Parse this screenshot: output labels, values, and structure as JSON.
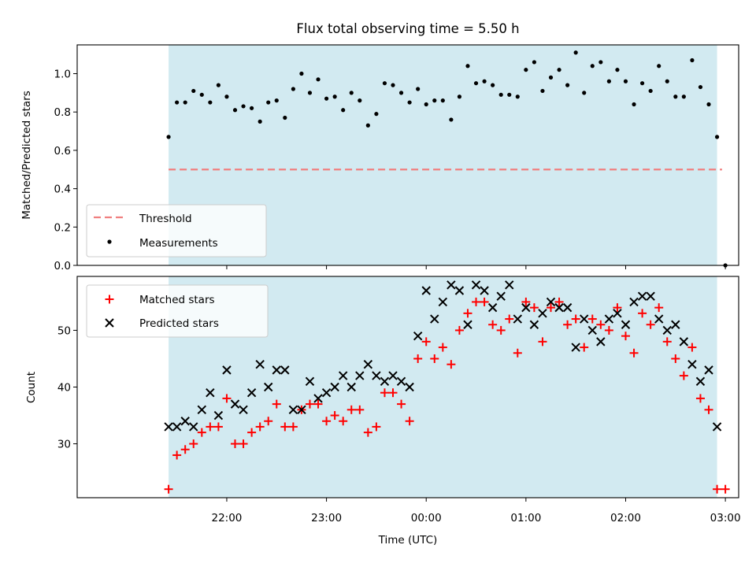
{
  "chart_data": [
    {
      "type": "scatter",
      "title": "Flux total observing time = 5.50 h",
      "xlabel": "",
      "ylabel": "Matched/Predicted stars",
      "ylim": [
        0,
        1.15
      ],
      "yticks": [
        0.0,
        0.2,
        0.4,
        0.6,
        0.8,
        1.0
      ],
      "ytick_labels": [
        "0.0",
        "0.2",
        "0.4",
        "0.6",
        "0.8",
        "1.0"
      ],
      "x_unit": "minutes after 21:00 UTC",
      "xlim": [
        -30,
        368
      ],
      "shaded_span": [
        25,
        355
      ],
      "shade_color": "#add8e6",
      "threshold": {
        "label": "Threshold",
        "value": 0.5,
        "x_range": [
          25,
          358
        ],
        "color": "#f08080"
      },
      "measurements": {
        "label": "Measurements",
        "color": "#000000",
        "x": [
          25,
          30,
          35,
          40,
          45,
          50,
          55,
          60,
          65,
          70,
          75,
          80,
          85,
          90,
          95,
          100,
          105,
          110,
          115,
          120,
          125,
          130,
          135,
          140,
          145,
          150,
          155,
          160,
          165,
          170,
          175,
          180,
          185,
          190,
          195,
          200,
          205,
          210,
          215,
          220,
          225,
          230,
          235,
          240,
          245,
          250,
          255,
          260,
          265,
          270,
          275,
          280,
          285,
          290,
          295,
          300,
          305,
          310,
          315,
          320,
          325,
          330,
          335,
          340,
          345,
          350,
          355,
          360
        ],
        "y": [
          0.67,
          0.85,
          0.85,
          0.91,
          0.89,
          0.85,
          0.94,
          0.88,
          0.81,
          0.83,
          0.82,
          0.75,
          0.85,
          0.86,
          0.77,
          0.92,
          1.0,
          0.9,
          0.97,
          0.87,
          0.88,
          0.81,
          0.9,
          0.86,
          0.73,
          0.79,
          0.95,
          0.94,
          0.9,
          0.85,
          0.92,
          0.84,
          0.86,
          0.86,
          0.76,
          0.88,
          1.04,
          0.95,
          0.96,
          0.94,
          0.89,
          0.89,
          0.88,
          1.02,
          1.06,
          0.91,
          0.98,
          1.02,
          0.94,
          1.11,
          0.9,
          1.04,
          1.06,
          0.96,
          1.02,
          0.96,
          0.84,
          0.95,
          0.91,
          1.04,
          0.96,
          0.88,
          0.88,
          1.07,
          0.93,
          0.84,
          0.67,
          0.0
        ]
      }
    },
    {
      "type": "scatter",
      "title": "",
      "xlabel": "Time (UTC)",
      "ylabel": "Count",
      "ylim": [
        20.5,
        59.5
      ],
      "yticks": [
        30,
        40,
        50
      ],
      "ytick_labels": [
        "30",
        "40",
        "50"
      ],
      "x_unit": "minutes after 21:00 UTC",
      "xlim": [
        -30,
        368
      ],
      "xticks": [
        60,
        120,
        180,
        240,
        300,
        360
      ],
      "xtick_labels": [
        "22:00",
        "23:00",
        "00:00",
        "01:00",
        "02:00",
        "03:00"
      ],
      "shaded_span": [
        25,
        355
      ],
      "shade_color": "#add8e6",
      "x": [
        25,
        30,
        35,
        40,
        45,
        50,
        55,
        60,
        65,
        70,
        75,
        80,
        85,
        90,
        95,
        100,
        105,
        110,
        115,
        120,
        125,
        130,
        135,
        140,
        145,
        150,
        155,
        160,
        165,
        170,
        175,
        180,
        185,
        190,
        195,
        200,
        205,
        210,
        215,
        220,
        225,
        230,
        235,
        240,
        245,
        250,
        255,
        260,
        265,
        270,
        275,
        280,
        285,
        290,
        295,
        300,
        305,
        310,
        315,
        320,
        325,
        330,
        335,
        340,
        345,
        350,
        355,
        360
      ],
      "series": [
        {
          "name": "Matched stars",
          "marker": "plus",
          "color": "#ff0000",
          "values": [
            22,
            28,
            29,
            30,
            32,
            33,
            33,
            38,
            30,
            30,
            32,
            33,
            34,
            37,
            33,
            33,
            36,
            37,
            37,
            34,
            35,
            34,
            36,
            36,
            32,
            33,
            39,
            39,
            37,
            34,
            45,
            48,
            45,
            47,
            44,
            50,
            53,
            55,
            55,
            51,
            50,
            52,
            46,
            55,
            54,
            48,
            54,
            55,
            51,
            52,
            47,
            52,
            51,
            50,
            54,
            49,
            46,
            53,
            51,
            54,
            48,
            45,
            42,
            47,
            38,
            36,
            22,
            22
          ]
        },
        {
          "name": "Predicted stars",
          "marker": "x",
          "color": "#000000",
          "values": [
            33,
            33,
            34,
            33,
            36,
            39,
            35,
            43,
            37,
            36,
            39,
            44,
            40,
            43,
            43,
            36,
            36,
            41,
            38,
            39,
            40,
            42,
            40,
            42,
            44,
            42,
            41,
            42,
            41,
            40,
            49,
            57,
            52,
            55,
            58,
            57,
            51,
            58,
            57,
            54,
            56,
            58,
            52,
            54,
            51,
            53,
            55,
            54,
            54,
            47,
            52,
            50,
            48,
            52,
            53,
            51,
            55,
            56,
            56,
            52,
            50,
            51,
            48,
            44,
            41,
            43,
            33,
            null
          ]
        }
      ]
    }
  ]
}
